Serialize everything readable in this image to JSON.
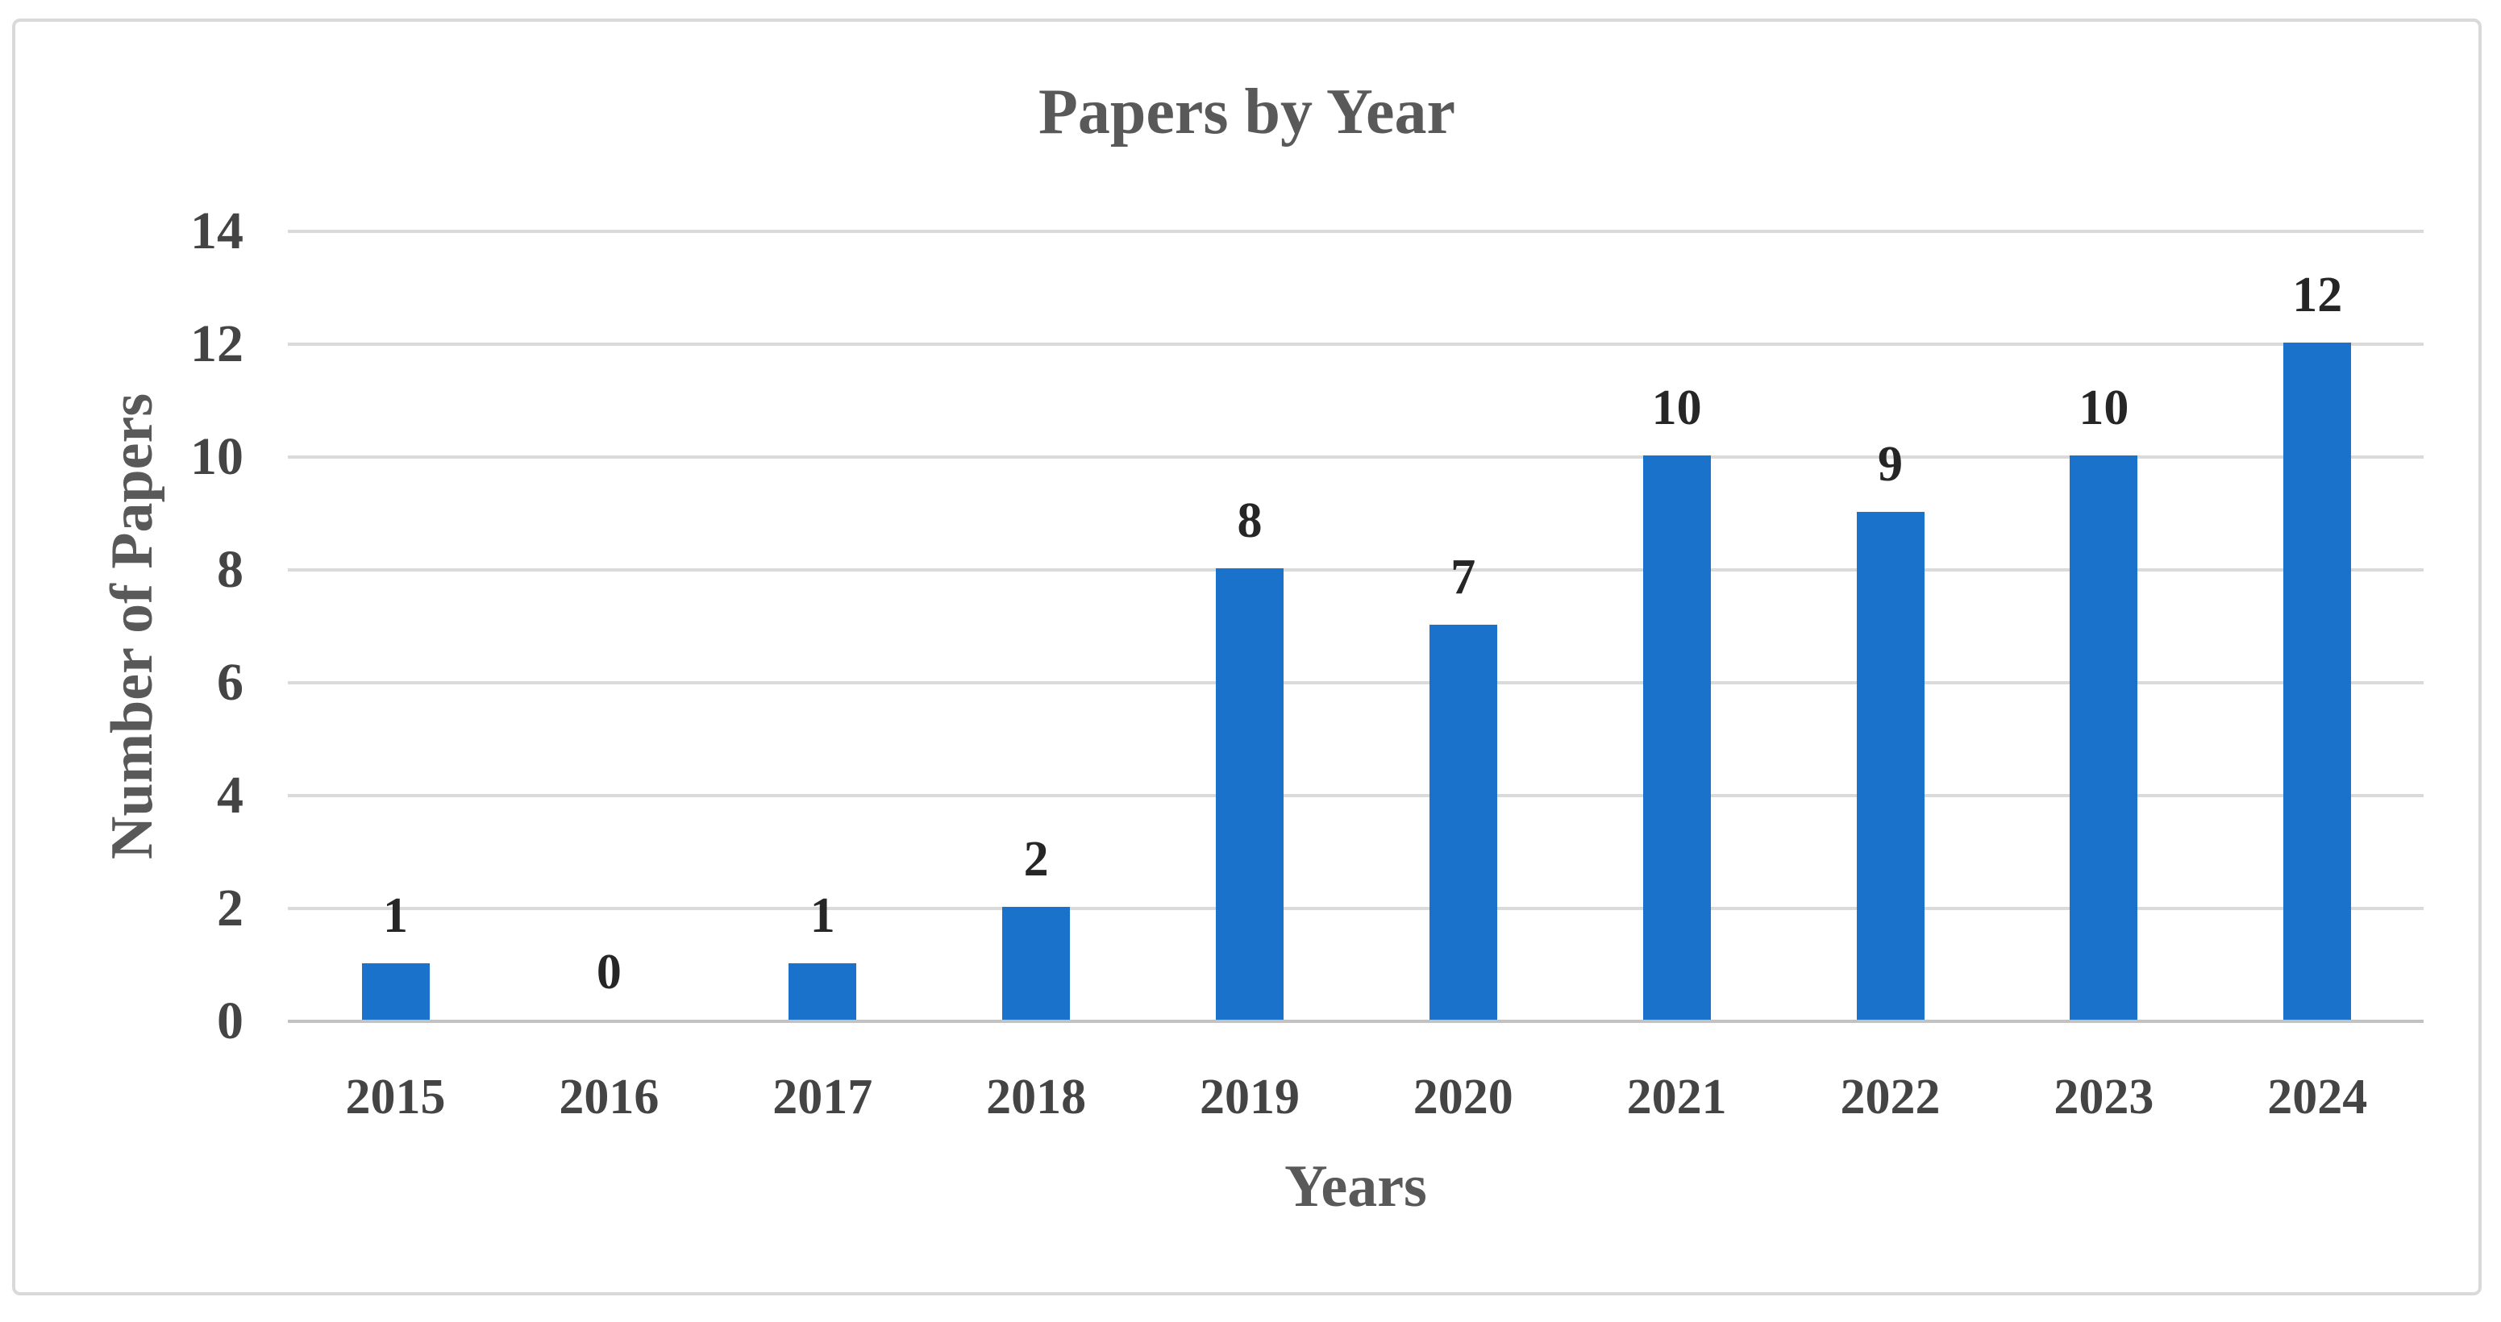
{
  "figure": {
    "background_color": "#FFFFFF",
    "border_color": "#D9D9D9"
  },
  "chart_data": {
    "type": "bar",
    "title": "Papers by Year",
    "xlabel": "Years",
    "ylabel": "Number of Papers",
    "categories": [
      "2015",
      "2016",
      "2017",
      "2018",
      "2019",
      "2020",
      "2021",
      "2022",
      "2023",
      "2024"
    ],
    "values": [
      1,
      0,
      1,
      2,
      8,
      7,
      10,
      9,
      10,
      12
    ],
    "data_labels": [
      "1",
      "0",
      "1",
      "2",
      "8",
      "7",
      "10",
      "9",
      "10",
      "12"
    ],
    "ylim": [
      0,
      14
    ],
    "yticks": [
      0,
      2,
      4,
      6,
      8,
      10,
      12,
      14
    ],
    "grid": "horizontal",
    "legend_position": "none",
    "show_data_labels": true,
    "colors": {
      "bar": "#1B72CA",
      "gridline": "#DADADA",
      "axis_line": "#C2C2C2",
      "title_text": "#595959",
      "axis_title_text": "#595959",
      "tick_label_text": "#444444",
      "data_label_text": "#262626"
    }
  }
}
